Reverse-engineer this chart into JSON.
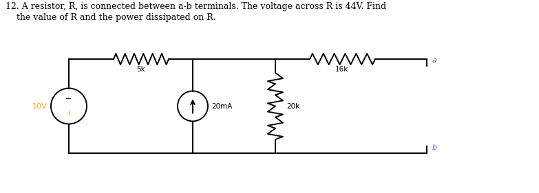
{
  "title_line1": "12. A resistor, R, is connected between a-b terminals. The voltage across R is 44V. Find",
  "title_line2": "    the value of R and the power dissipated on R.",
  "label_5k": "5k",
  "label_16k": "16k",
  "label_20k": "20k",
  "label_20mA": "20mA",
  "label_10V": "10V",
  "label_a": "a",
  "label_b": "b",
  "text_color": "#000000",
  "blue_color": "#4169E1",
  "orange_color": "#FFA500",
  "line_color": "#000000",
  "bg_color": "#FFFFFF",
  "fig_width": 7.83,
  "fig_height": 2.81
}
